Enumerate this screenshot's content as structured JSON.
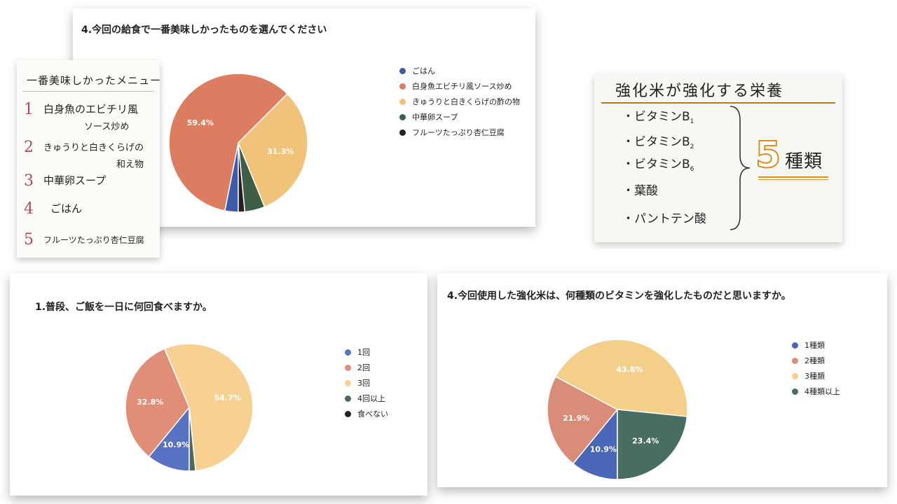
{
  "chart_data": [
    {
      "type": "pie",
      "title": "4.今回の給食で一番美味しかったものを選んでください",
      "categories": [
        "ごはん",
        "白身魚エビチリ風ソース炒め",
        "きゅうりと白きくらげの酢の物",
        "中華卵スープ",
        "フルーツたっぷり杏仁豆腐"
      ],
      "values": [
        3.1,
        59.4,
        31.3,
        4.7,
        1.5
      ],
      "labels": [
        "",
        "59.4%",
        "31.3%",
        "",
        ""
      ],
      "colors": [
        "#3d5ba9",
        "#dc7c61",
        "#f0c27a",
        "#3f5e48",
        "#2a1c20"
      ],
      "legend": "right"
    },
    {
      "type": "pie",
      "title": "1.普段、ご飯を一日に何回食べますか。",
      "categories": [
        "1回",
        "2回",
        "3回",
        "4回以上",
        "食べない"
      ],
      "values": [
        10.9,
        32.8,
        54.7,
        1.6,
        0
      ],
      "labels": [
        "10.9%",
        "32.8%",
        "54.7%",
        "",
        ""
      ],
      "colors": [
        "#5873c2",
        "#e08e77",
        "#f6d191",
        "#4f6b55",
        "#2a1c20"
      ],
      "legend": "right"
    },
    {
      "type": "pie",
      "title": "4.今回使用した強化米は、何種類のビタミンを強化したものだと思いますか。",
      "categories": [
        "1種類",
        "2種類",
        "3種類",
        "4種類以上"
      ],
      "values": [
        10.9,
        21.9,
        43.8,
        23.4
      ],
      "labels": [
        "10.9%",
        "21.9%",
        "43.8%",
        "23.4%"
      ],
      "colors": [
        "#4a66b6",
        "#d98c78",
        "#f3cf8a",
        "#476e60"
      ],
      "legend": "right"
    }
  ],
  "menu_board": {
    "title": "一番美味しかったメニュー",
    "items": [
      {
        "num": "1",
        "line1": "白身魚のエビチリ風",
        "line2": "ソース炒め"
      },
      {
        "num": "2",
        "line1": "きゅうりと白きくらげの",
        "line2": "和え物"
      },
      {
        "num": "3",
        "line1": "中華卵スープ",
        "line2": ""
      },
      {
        "num": "4",
        "line1": "ごはん",
        "line2": ""
      },
      {
        "num": "5",
        "line1": "フルーツたっぷり杏仁豆腐",
        "line2": ""
      }
    ]
  },
  "nutrient_board": {
    "title": "強化米が強化する栄養",
    "items": [
      "・ビタミンB",
      "・ビタミンB",
      "・ビタミンB",
      "・葉酸",
      "・パントテン酸"
    ],
    "subs": [
      "1",
      "2",
      "6"
    ],
    "count": "5",
    "count_label": "種類"
  }
}
